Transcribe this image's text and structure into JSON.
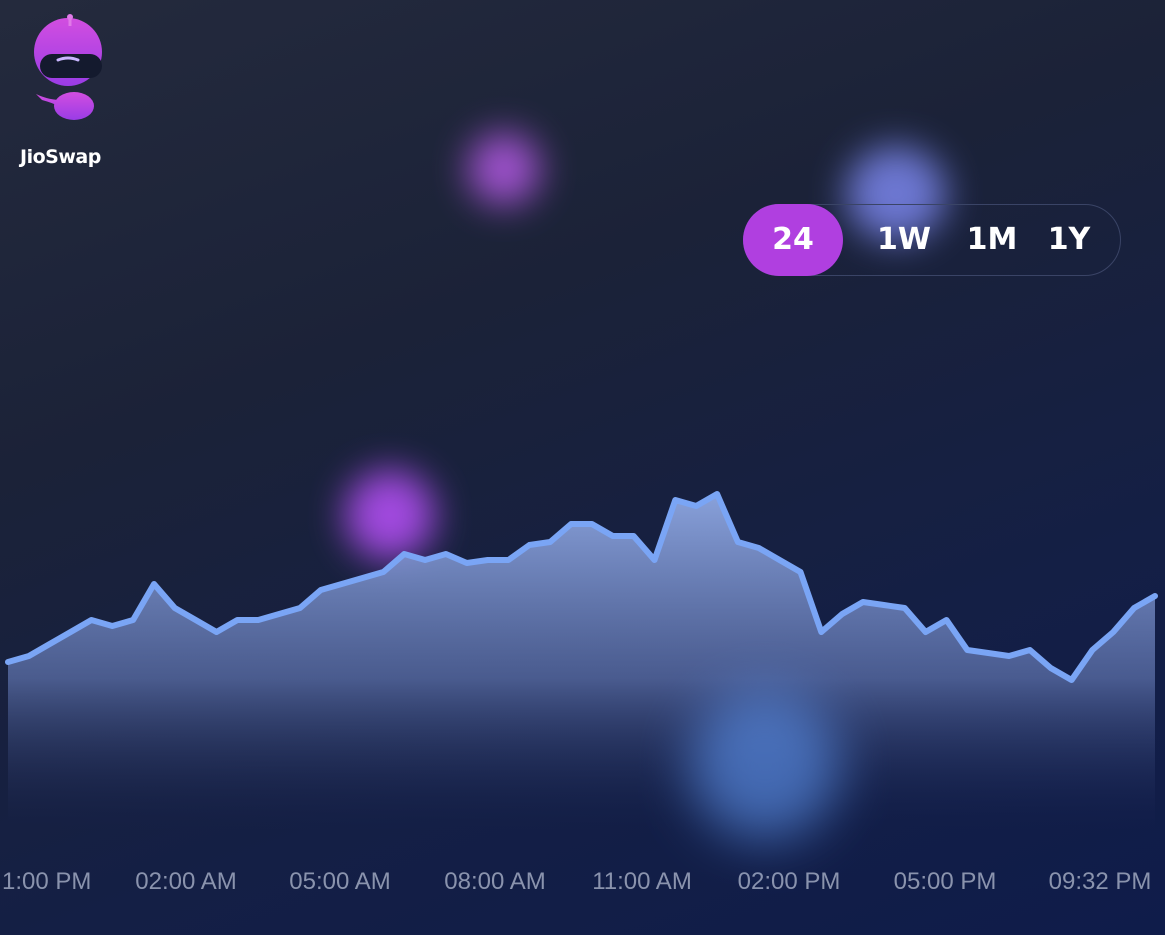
{
  "brand": {
    "name": "JioSwap",
    "logo_icon": "robot-mascot-icon"
  },
  "range_selector": {
    "options": [
      "24",
      "1W",
      "1M",
      "1Y"
    ],
    "active": "24",
    "active_color": "#b03fe0"
  },
  "colors": {
    "line": "#7aa5f5",
    "background": "#1b2238"
  },
  "chart_data": {
    "type": "area",
    "x_ticks": [
      "1:00 PM",
      "02:00 AM",
      "05:00 AM",
      "08:00 AM",
      "11:00 AM",
      "02:00 PM",
      "05:00 PM",
      "09:32 PM"
    ],
    "values": [
      28,
      29,
      31,
      33,
      35,
      34,
      35,
      41,
      37,
      35,
      33,
      35,
      35,
      36,
      37,
      40,
      41,
      42,
      43,
      46,
      45,
      46,
      44.5,
      45,
      45,
      47.5,
      48,
      51,
      51,
      49,
      49,
      45,
      55,
      54,
      56,
      48,
      47,
      45,
      43,
      33,
      36,
      38,
      37.5,
      37,
      33,
      35,
      30,
      29.5,
      29,
      30,
      27,
      25,
      30,
      33,
      37,
      39
    ],
    "ylim": [
      0,
      60
    ],
    "grid": false,
    "legend": "none"
  }
}
